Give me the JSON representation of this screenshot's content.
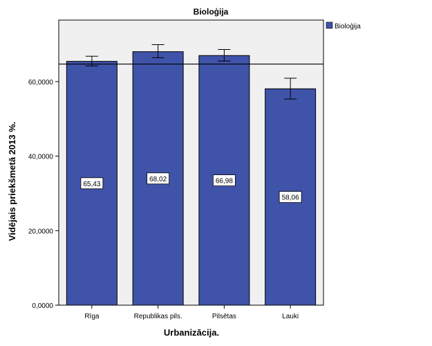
{
  "chart_data": {
    "type": "bar",
    "title": "Bioloģija",
    "xlabel": "Urbanizācija.",
    "ylabel": "Vidējais priekšmetā 2013 %.",
    "categories": [
      "Rīga",
      "Republikas pils.",
      "Pilsētas",
      "Lauki"
    ],
    "series": [
      {
        "name": "Bioloģija",
        "values": [
          65.43,
          68.02,
          66.98,
          58.06
        ],
        "data_labels": [
          "65,43",
          "68,02",
          "66,98",
          "58,06"
        ],
        "error_low": [
          64.2,
          66.4,
          65.5,
          55.3
        ],
        "error_high": [
          66.8,
          69.9,
          68.6,
          60.9
        ],
        "color": "#3f53a8"
      }
    ],
    "reference_line": 64.7,
    "ylim": [
      0,
      76.5
    ],
    "yticks": [
      0,
      20,
      40,
      60
    ],
    "ytick_labels": [
      "0,0000",
      "20,0000",
      "40,0000",
      "60,0000"
    ],
    "grid": false,
    "legend_position": "top-right",
    "plot_background": "#f0f0f0"
  }
}
